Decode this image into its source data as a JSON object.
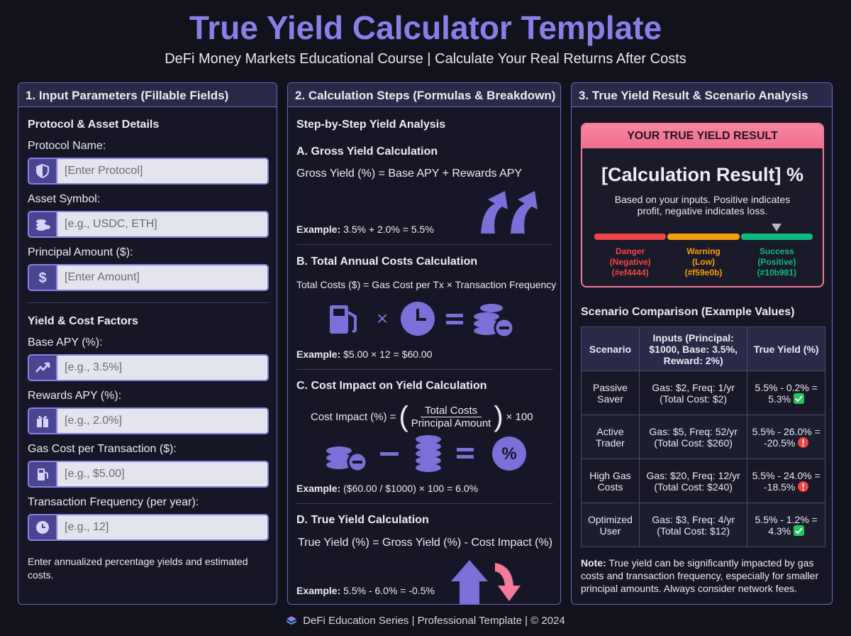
{
  "header": {
    "title": "True Yield Calculator Template",
    "subtitle": "DeFi Money Markets Educational Course | Calculate Your Real Returns After Costs"
  },
  "inputs": {
    "title": "1. Input Parameters (Fillable Fields)",
    "groups": [
      {
        "heading": "Protocol & Asset Details",
        "fields": [
          {
            "label": "Protocol Name:",
            "placeholder": "[Enter Protocol]"
          },
          {
            "label": "Asset Symbol:",
            "placeholder": "[e.g., USDC, ETH]"
          },
          {
            "label": "Principal Amount ($):",
            "placeholder": "[Enter Amount]"
          }
        ]
      },
      {
        "heading": "Yield & Cost Factors",
        "fields": [
          {
            "label": "Base APY (%):",
            "placeholder": "[e.g., 3.5%]"
          },
          {
            "label": "Rewards APY (%):",
            "placeholder": "[e.g., 2.0%]"
          },
          {
            "label": "Gas Cost per Transaction ($):",
            "placeholder": "[e.g., $5.00]"
          },
          {
            "label": "Transaction Frequency (per year):",
            "placeholder": "[e.g., 12]"
          }
        ]
      }
    ],
    "note": "Enter annualized percentage yields and estimated costs."
  },
  "steps": {
    "title": "2. Calculation Steps (Formulas & Breakdown)",
    "subtitle": "Step-by-Step Yield Analysis",
    "example_label": "Example:",
    "items": [
      {
        "heading": "A. Gross Yield Calculation",
        "formula": "Gross Yield (%) = Base APY + Rewards APY",
        "example": "3.5% + 2.0% = 5.5%"
      },
      {
        "heading": "B. Total Annual Costs Calculation",
        "formula": "Total Costs ($) = Gas Cost per Tx × Transaction Frequency",
        "example": "$5.00 × 12 = $60.00"
      },
      {
        "heading": "C. Cost Impact on Yield Calculation",
        "formula_lead": "Cost Impact (%) =",
        "numerator": "Total Costs",
        "denominator": "Principal Amount",
        "formula_tail": "× 100",
        "example": "($60.00 / $1000) × 100 = 6.0%"
      },
      {
        "heading": "D. True Yield Calculation",
        "formula": "True Yield (%) = Gross Yield (%) - Cost Impact (%)",
        "example": "5.5% - 6.0% = -0.5%"
      }
    ]
  },
  "results": {
    "title": "3. True Yield Result & Scenario Analysis",
    "card": {
      "header": "YOUR TRUE YIELD RESULT",
      "value": "[Calculation Result] %",
      "note": "Based on your inputs. Positive indicates profit, negative indicates loss.",
      "gauge": [
        {
          "name": "Danger",
          "desc": "(Negative)",
          "code": "(#ef4444)"
        },
        {
          "name": "Warning",
          "desc": "(Low)",
          "code": "(#f59e0b)"
        },
        {
          "name": "Success",
          "desc": "(Positive)",
          "code": "(#10b981)"
        }
      ]
    },
    "table": {
      "title": "Scenario Comparison (Example Values)",
      "headers": [
        "Scenario",
        "Inputs (Principal: $1000, Base: 3.5%, Reward: 2%)",
        "True Yield (%)"
      ],
      "rows": [
        [
          "Passive Saver",
          "Gas: $2, Freq: 1/yr (Total Cost: $2)",
          "5.5% - 0.2% = 5.3%"
        ],
        [
          "Active Trader",
          "Gas: $5, Freq: 52/yr (Total Cost: $260)",
          "5.5% - 26.0% = -20.5%"
        ],
        [
          "High Gas Costs",
          "Gas: $20, Freq: 12/yr (Total Cost: $240)",
          "5.5% - 24.0% = -18.5%"
        ],
        [
          "Optimized User",
          "Gas: $3, Freq: 4/yr (Total Cost: $12)",
          "5.5% - 1.2% = 4.3%"
        ]
      ]
    },
    "note_label": "Note:",
    "note": "True yield can be significantly impacted by gas costs and transaction frequency, especially for smaller principal amounts. Always consider network fees."
  },
  "footer": "DeFi Education Series | Professional Template | © 2024"
}
